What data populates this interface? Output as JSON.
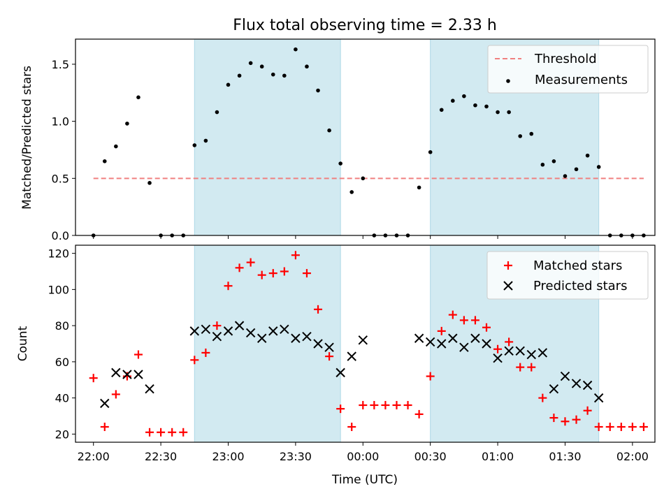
{
  "chart_data": {
    "title": "Flux total observing time = 2.33 h",
    "xlabel": "Time (UTC)",
    "x_range": [
      "21:52",
      "02:10"
    ],
    "x_ticks": [
      "22:00",
      "22:30",
      "23:00",
      "23:30",
      "00:00",
      "00:30",
      "01:00",
      "01:30",
      "02:00"
    ],
    "shaded_intervals": [
      [
        "22:45",
        "23:50"
      ],
      [
        "00:30",
        "01:45"
      ]
    ],
    "shade_color": "#add8e6",
    "panels": [
      {
        "type": "scatter",
        "ylabel": "Matched/Predicted stars",
        "ylim": [
          0,
          1.72
        ],
        "yticks": [
          "0.0",
          "0.5",
          "1.0",
          "1.5"
        ],
        "grid": false,
        "legend_position": "top-right",
        "threshold": {
          "name": "Threshold",
          "value": 0.5,
          "x_start": "22:00",
          "x_end": "02:05",
          "color": "#f08080",
          "style": "dashed"
        },
        "series": [
          {
            "name": "Measurements",
            "marker": "dot",
            "color": "#000000",
            "points": [
              [
                "22:00",
                0.0
              ],
              [
                "22:05",
                0.65
              ],
              [
                "22:10",
                0.78
              ],
              [
                "22:15",
                0.98
              ],
              [
                "22:20",
                1.21
              ],
              [
                "22:25",
                0.46
              ],
              [
                "22:30",
                0.0
              ],
              [
                "22:35",
                0.0
              ],
              [
                "22:40",
                0.0
              ],
              [
                "22:45",
                0.79
              ],
              [
                "22:50",
                0.83
              ],
              [
                "22:55",
                1.08
              ],
              [
                "23:00",
                1.32
              ],
              [
                "23:05",
                1.4
              ],
              [
                "23:10",
                1.51
              ],
              [
                "23:15",
                1.48
              ],
              [
                "23:20",
                1.41
              ],
              [
                "23:25",
                1.4
              ],
              [
                "23:30",
                1.63
              ],
              [
                "23:35",
                1.48
              ],
              [
                "23:40",
                1.27
              ],
              [
                "23:45",
                0.92
              ],
              [
                "23:50",
                0.63
              ],
              [
                "23:55",
                0.38
              ],
              [
                "00:00",
                0.5
              ],
              [
                "00:05",
                0.0
              ],
              [
                "00:10",
                0.0
              ],
              [
                "00:15",
                0.0
              ],
              [
                "00:20",
                0.0
              ],
              [
                "00:25",
                0.42
              ],
              [
                "00:30",
                0.73
              ],
              [
                "00:35",
                1.1
              ],
              [
                "00:40",
                1.18
              ],
              [
                "00:45",
                1.22
              ],
              [
                "00:50",
                1.14
              ],
              [
                "00:55",
                1.13
              ],
              [
                "01:00",
                1.08
              ],
              [
                "01:05",
                1.08
              ],
              [
                "01:10",
                0.87
              ],
              [
                "01:15",
                0.89
              ],
              [
                "01:20",
                0.62
              ],
              [
                "01:25",
                0.65
              ],
              [
                "01:30",
                0.52
              ],
              [
                "01:35",
                0.58
              ],
              [
                "01:40",
                0.7
              ],
              [
                "01:45",
                0.6
              ],
              [
                "01:50",
                0.0
              ],
              [
                "01:55",
                0.0
              ],
              [
                "02:00",
                0.0
              ],
              [
                "02:05",
                0.0
              ]
            ]
          }
        ]
      },
      {
        "type": "scatter",
        "ylabel": "Count",
        "ylim": [
          15.5,
          124.5
        ],
        "yticks": [
          "20",
          "40",
          "60",
          "80",
          "100",
          "120"
        ],
        "grid": false,
        "legend_position": "top-right",
        "series": [
          {
            "name": "Matched stars",
            "marker": "plus",
            "color": "#ff0000",
            "points": [
              [
                "22:00",
                51
              ],
              [
                "22:05",
                24
              ],
              [
                "22:10",
                42
              ],
              [
                "22:15",
                52
              ],
              [
                "22:20",
                64
              ],
              [
                "22:25",
                21
              ],
              [
                "22:30",
                21
              ],
              [
                "22:35",
                21
              ],
              [
                "22:40",
                21
              ],
              [
                "22:45",
                61
              ],
              [
                "22:50",
                65
              ],
              [
                "22:55",
                80
              ],
              [
                "23:00",
                102
              ],
              [
                "23:05",
                112
              ],
              [
                "23:10",
                115
              ],
              [
                "23:15",
                108
              ],
              [
                "23:20",
                109
              ],
              [
                "23:25",
                110
              ],
              [
                "23:30",
                119
              ],
              [
                "23:35",
                109
              ],
              [
                "23:40",
                89
              ],
              [
                "23:45",
                63
              ],
              [
                "23:50",
                34
              ],
              [
                "23:55",
                24
              ],
              [
                "00:00",
                36
              ],
              [
                "00:05",
                36
              ],
              [
                "00:10",
                36
              ],
              [
                "00:15",
                36
              ],
              [
                "00:20",
                36
              ],
              [
                "00:25",
                31
              ],
              [
                "00:30",
                52
              ],
              [
                "00:35",
                77
              ],
              [
                "00:40",
                86
              ],
              [
                "00:45",
                83
              ],
              [
                "00:50",
                83
              ],
              [
                "00:55",
                79
              ],
              [
                "01:00",
                67
              ],
              [
                "01:05",
                71
              ],
              [
                "01:10",
                57
              ],
              [
                "01:15",
                57
              ],
              [
                "01:20",
                40
              ],
              [
                "01:25",
                29
              ],
              [
                "01:30",
                27
              ],
              [
                "01:35",
                28
              ],
              [
                "01:40",
                33
              ],
              [
                "01:45",
                24
              ],
              [
                "01:50",
                24
              ],
              [
                "01:55",
                24
              ],
              [
                "02:00",
                24
              ],
              [
                "02:05",
                24
              ]
            ]
          },
          {
            "name": "Predicted stars",
            "marker": "x",
            "color": "#000000",
            "points": [
              [
                "22:05",
                37
              ],
              [
                "22:10",
                54
              ],
              [
                "22:15",
                53
              ],
              [
                "22:20",
                53
              ],
              [
                "22:25",
                45
              ],
              [
                "22:45",
                77
              ],
              [
                "22:50",
                78
              ],
              [
                "22:55",
                74
              ],
              [
                "23:00",
                77
              ],
              [
                "23:05",
                80
              ],
              [
                "23:10",
                76
              ],
              [
                "23:15",
                73
              ],
              [
                "23:20",
                77
              ],
              [
                "23:25",
                78
              ],
              [
                "23:30",
                73
              ],
              [
                "23:35",
                74
              ],
              [
                "23:40",
                70
              ],
              [
                "23:45",
                68
              ],
              [
                "23:50",
                54
              ],
              [
                "23:55",
                63
              ],
              [
                "00:00",
                72
              ],
              [
                "00:25",
                73
              ],
              [
                "00:30",
                71
              ],
              [
                "00:35",
                70
              ],
              [
                "00:40",
                73
              ],
              [
                "00:45",
                68
              ],
              [
                "00:50",
                73
              ],
              [
                "00:55",
                70
              ],
              [
                "01:00",
                62
              ],
              [
                "01:05",
                66
              ],
              [
                "01:10",
                66
              ],
              [
                "01:15",
                64
              ],
              [
                "01:20",
                65
              ],
              [
                "01:25",
                45
              ],
              [
                "01:30",
                52
              ],
              [
                "01:35",
                48
              ],
              [
                "01:40",
                47
              ],
              [
                "01:45",
                40
              ]
            ]
          }
        ]
      }
    ]
  }
}
